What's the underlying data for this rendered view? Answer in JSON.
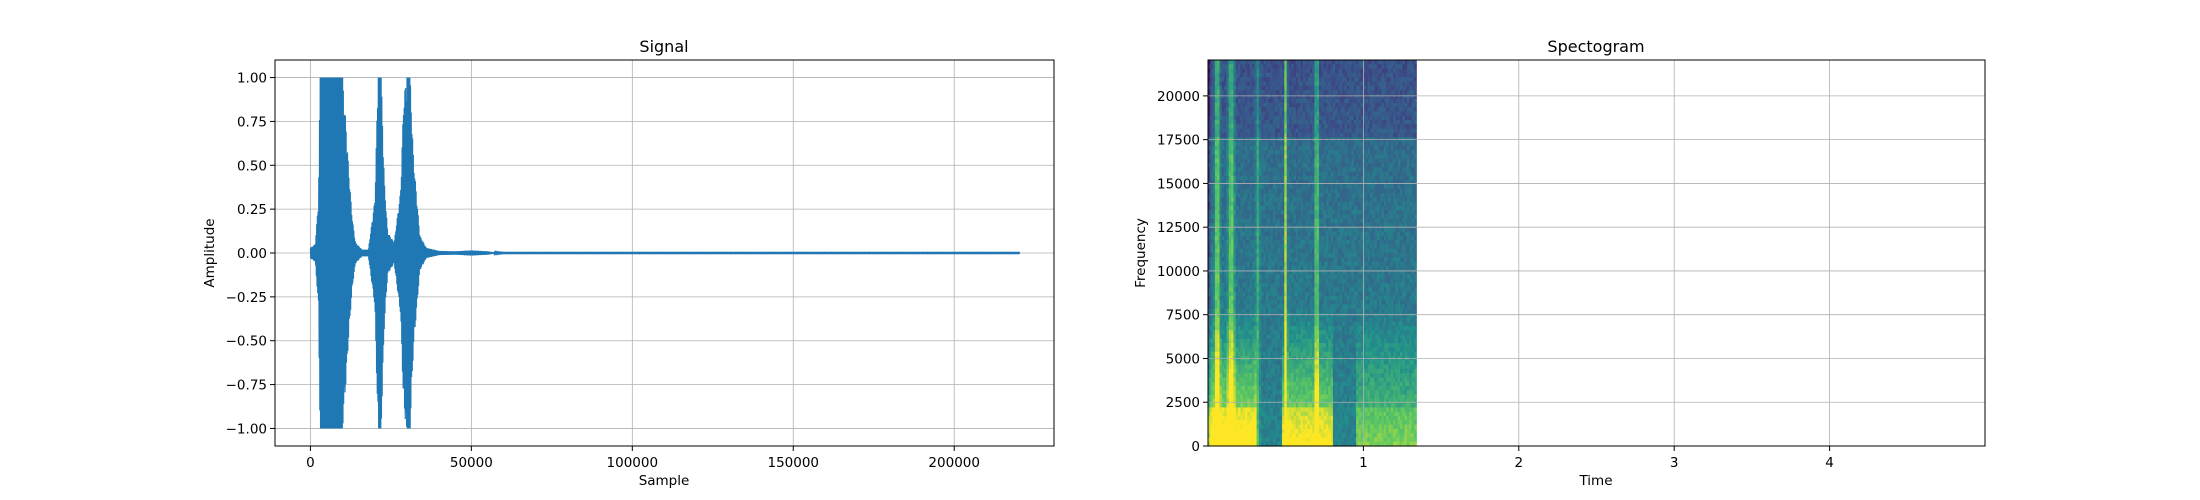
{
  "chart_data": [
    {
      "type": "line",
      "title": "Signal",
      "xlabel": "Sample",
      "ylabel": "Amplitude",
      "xlim": [
        -11000,
        231000
      ],
      "ylim": [
        -1.1,
        1.1
      ],
      "grid": true,
      "color": "#1f77b4",
      "x_ticks": [
        0,
        50000,
        100000,
        150000,
        200000
      ],
      "x_tick_labels": [
        "0",
        "50000",
        "100000",
        "150000",
        "200000"
      ],
      "y_ticks": [
        1.0,
        0.75,
        0.5,
        0.25,
        0.0,
        -0.25,
        -0.5,
        -0.75,
        -1.0
      ],
      "y_tick_labels": [
        "1.00",
        "0.75",
        "0.50",
        "0.25",
        "0.00",
        "−0.25",
        "−0.50",
        "−0.75",
        "−1.00"
      ],
      "series": [
        {
          "x": [
            0,
            1500,
            2500,
            3000,
            4000,
            6000,
            8000,
            10000,
            11000,
            12000,
            13000,
            14000,
            16000,
            18000,
            20000,
            21000,
            22000,
            23000,
            24000,
            26000,
            28000,
            29000,
            30000,
            31000,
            32000,
            34000,
            36000,
            40000,
            45000,
            50000,
            55000,
            57000,
            60000,
            100000,
            150000,
            220500
          ],
          "envelope": [
            0.03,
            0.05,
            0.3,
            1.0,
            1.0,
            1.0,
            1.0,
            1.0,
            0.75,
            0.45,
            0.2,
            0.06,
            0.02,
            0.02,
            0.3,
            1.0,
            1.0,
            0.4,
            0.12,
            0.06,
            0.35,
            0.9,
            1.0,
            1.0,
            0.55,
            0.1,
            0.03,
            0.012,
            0.01,
            0.015,
            0.01,
            0.004,
            0.002,
            0.002,
            0.002,
            0.002
          ]
        }
      ]
    },
    {
      "type": "heatmap",
      "title": "Spectogram",
      "xlabel": "Time",
      "ylabel": "Frequency",
      "xlim": [
        0,
        5.0
      ],
      "ylim": [
        0,
        22050
      ],
      "grid": true,
      "data_end_time": 1.34,
      "x_ticks": [
        1,
        2,
        3,
        4
      ],
      "x_tick_labels": [
        "1",
        "2",
        "3",
        "4"
      ],
      "y_ticks": [
        0,
        2500,
        5000,
        7500,
        10000,
        12500,
        15000,
        17500,
        20000
      ],
      "y_tick_labels": [
        "0",
        "2500",
        "5000",
        "7500",
        "10000",
        "12500",
        "15000",
        "17500",
        "20000"
      ],
      "colormap": [
        "#440154",
        "#3b528b",
        "#21918c",
        "#5ec962",
        "#fde725"
      ]
    }
  ]
}
